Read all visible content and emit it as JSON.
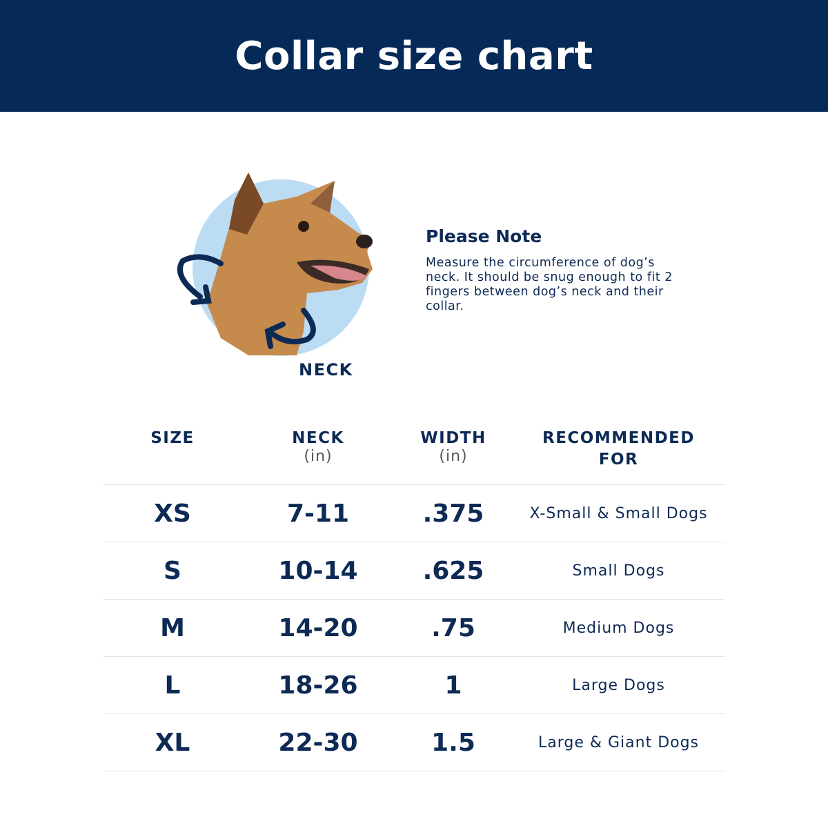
{
  "title": "Collar size chart",
  "illustration": {
    "label": "NECK",
    "circle_color": "#bcdcf3",
    "arrow_color": "#0d2a55"
  },
  "note": {
    "heading": "Please Note",
    "body": "Measure the circumference of dog’s neck. It should be snug enough to fit 2 fingers between dog’s neck and their collar."
  },
  "table": {
    "headers": [
      {
        "label": "SIZE",
        "unit": ""
      },
      {
        "label": "NECK",
        "unit": "(in)"
      },
      {
        "label": "WIDTH",
        "unit": "(in)"
      },
      {
        "label": "RECOMMENDED FOR",
        "unit": ""
      }
    ],
    "rows": [
      {
        "size": "XS",
        "neck": "7-11",
        "width": ".375",
        "recommended": "X-Small & Small Dogs"
      },
      {
        "size": "S",
        "neck": "10-14",
        "width": ".625",
        "recommended": "Small Dogs"
      },
      {
        "size": "M",
        "neck": "14-20",
        "width": ".75",
        "recommended": "Medium Dogs"
      },
      {
        "size": "L",
        "neck": "18-26",
        "width": "1",
        "recommended": "Large Dogs"
      },
      {
        "size": "XL",
        "neck": "22-30",
        "width": "1.5",
        "recommended": "Large & Giant Dogs"
      }
    ]
  },
  "colors": {
    "header_bg": "#062a57",
    "text": "#0d2a55"
  }
}
